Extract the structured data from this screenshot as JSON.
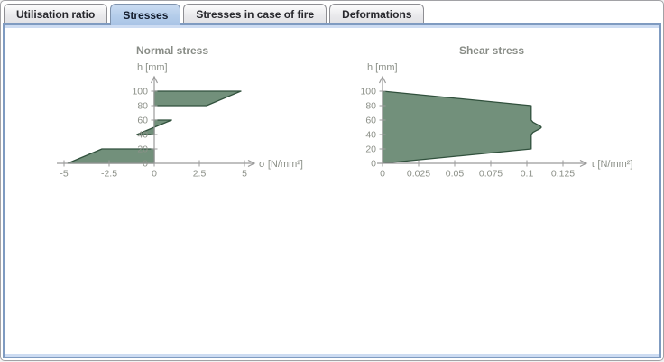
{
  "tabs": [
    {
      "label": "Utilisation ratio",
      "active": false
    },
    {
      "label": "Stresses",
      "active": true
    },
    {
      "label": "Stresses in case of fire",
      "active": false
    },
    {
      "label": "Deformations",
      "active": false
    }
  ],
  "colors": {
    "shape_fill": "#72907B",
    "shape_stroke": "#31513D",
    "axis": "#9B9B9B",
    "tick_text": "#8C9088",
    "title_text": "#888C86",
    "active_tab_bg": "#B4CDEA",
    "content_border": "#7F9BC1"
  },
  "chart_data": [
    {
      "type": "area",
      "title": "Normal stress",
      "xlabel": "σ [N/mm²]",
      "ylabel": "h [mm]",
      "xlim": [
        -5.4,
        5.6
      ],
      "ylim": [
        0,
        120
      ],
      "x_ticks": [
        -5,
        -2.5,
        0,
        2.5,
        5
      ],
      "y_ticks": [
        0,
        20,
        40,
        60,
        80,
        100
      ],
      "grid": false,
      "legend": false,
      "description": "Normal stress over cross-section height; filled between sigma(h) and the h-axis for the three longitudinal layers (0-20, 40-60, 80-100 mm)",
      "shapes": [
        {
          "name": "normal-stress-layer-0-20mm",
          "points": [
            [
              0,
              0
            ],
            [
              -4.8,
              0
            ],
            [
              -2.9,
              20
            ],
            [
              0,
              20
            ]
          ]
        },
        {
          "name": "normal-stress-layer-40-60mm",
          "points": [
            [
              0,
              40
            ],
            [
              -0.96,
              40
            ],
            [
              0.96,
              60
            ],
            [
              0,
              60
            ]
          ]
        },
        {
          "name": "normal-stress-layer-80-100mm",
          "points": [
            [
              0,
              80
            ],
            [
              2.9,
              80
            ],
            [
              4.8,
              100
            ],
            [
              0,
              100
            ]
          ]
        }
      ]
    },
    {
      "type": "area",
      "title": "Shear stress",
      "xlabel": "τ [N/mm²]",
      "ylabel": "h [mm]",
      "xlim": [
        -0.004,
        0.141
      ],
      "ylim": [
        0,
        120
      ],
      "x_ticks": [
        0,
        0.025,
        0.05,
        0.075,
        0.1,
        0.125
      ],
      "y_ticks": [
        0,
        20,
        40,
        60,
        80,
        100
      ],
      "grid": false,
      "legend": false,
      "description": "Shear stress over cross-section height; tau = 0.103 N/mm2 at layer boundaries, parabolic peak approx 0.11 N/mm2 at mid-height h = 50 mm",
      "shapes": [
        {
          "name": "shear-stress-profile",
          "points": [
            [
              0,
              0
            ],
            [
              0.103,
              20
            ],
            [
              0.103,
              40
            ],
            [
              0.1043,
              43
            ],
            [
              0.1066,
              45.5
            ],
            [
              0.1086,
              47.5
            ],
            [
              0.1096,
              49
            ],
            [
              0.11,
              50
            ],
            [
              0.1096,
              51
            ],
            [
              0.1086,
              52.5
            ],
            [
              0.1066,
              54.5
            ],
            [
              0.1043,
              57
            ],
            [
              0.103,
              60
            ],
            [
              0.103,
              80
            ],
            [
              0,
              100
            ]
          ]
        }
      ]
    }
  ]
}
